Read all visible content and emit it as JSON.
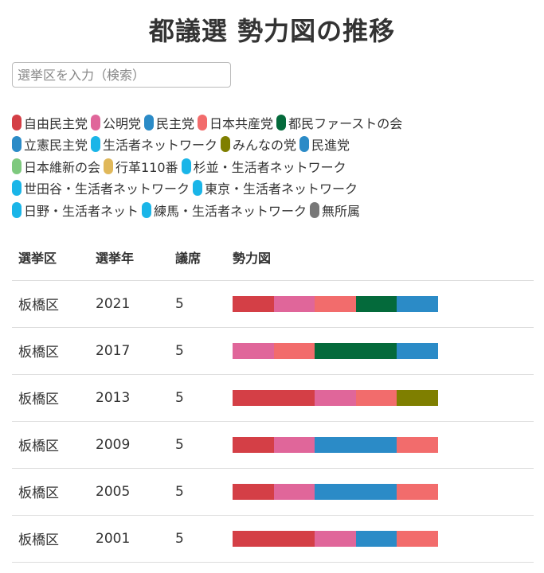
{
  "title": "都議選 勢力図の推移",
  "search": {
    "placeholder": "選挙区を入力（検索）",
    "value": ""
  },
  "legend": {
    "rows": [
      [
        {
          "label": "自由民主党",
          "color": "#d43f46"
        },
        {
          "label": "公明党",
          "color": "#e0669a"
        },
        {
          "label": "民主党",
          "color": "#2b8bc7"
        },
        {
          "label": "日本共産党",
          "color": "#f26c6c"
        },
        {
          "label": "都民ファーストの会",
          "color": "#046a3b"
        }
      ],
      [
        {
          "label": "立憲民主党",
          "color": "#2b8bc7"
        },
        {
          "label": "生活者ネットワーク",
          "color": "#1ab5e8"
        },
        {
          "label": "みんなの党",
          "color": "#7f7f00"
        },
        {
          "label": "民進党",
          "color": "#2b8bc7"
        }
      ],
      [
        {
          "label": "日本維新の会",
          "color": "#7ec97e"
        },
        {
          "label": "行革110番",
          "color": "#e0b85a"
        },
        {
          "label": "杉並・生活者ネットワーク",
          "color": "#1ab5e8"
        }
      ],
      [
        {
          "label": "世田谷・生活者ネットワーク",
          "color": "#1ab5e8"
        },
        {
          "label": "東京・生活者ネットワーク",
          "color": "#1ab5e8"
        }
      ],
      [
        {
          "label": "日野・生活者ネット",
          "color": "#1ab5e8"
        },
        {
          "label": "練馬・生活者ネットワーク",
          "color": "#1ab5e8"
        },
        {
          "label": "無所属",
          "color": "#777777"
        }
      ]
    ]
  },
  "table": {
    "headers": [
      "選挙区",
      "選挙年",
      "議席",
      "勢力図"
    ],
    "rows": [
      {
        "ward": "板橋区",
        "year": "2021",
        "seats": "5",
        "parties": [
          "自由民主党",
          "公明党",
          "日本共産党",
          "都民ファーストの会",
          "立憲民主党"
        ]
      },
      {
        "ward": "板橋区",
        "year": "2017",
        "seats": "5",
        "parties": [
          "公明党",
          "日本共産党",
          "都民ファーストの会",
          "都民ファーストの会",
          "民進党"
        ]
      },
      {
        "ward": "板橋区",
        "year": "2013",
        "seats": "5",
        "parties": [
          "自由民主党",
          "自由民主党",
          "公明党",
          "日本共産党",
          "みんなの党"
        ]
      },
      {
        "ward": "板橋区",
        "year": "2009",
        "seats": "5",
        "parties": [
          "自由民主党",
          "公明党",
          "民主党",
          "民主党",
          "日本共産党"
        ]
      },
      {
        "ward": "板橋区",
        "year": "2005",
        "seats": "5",
        "parties": [
          "自由民主党",
          "公明党",
          "民主党",
          "民主党",
          "日本共産党"
        ]
      },
      {
        "ward": "板橋区",
        "year": "2001",
        "seats": "5",
        "parties": [
          "自由民主党",
          "自由民主党",
          "公明党",
          "民主党",
          "日本共産党"
        ]
      }
    ]
  }
}
